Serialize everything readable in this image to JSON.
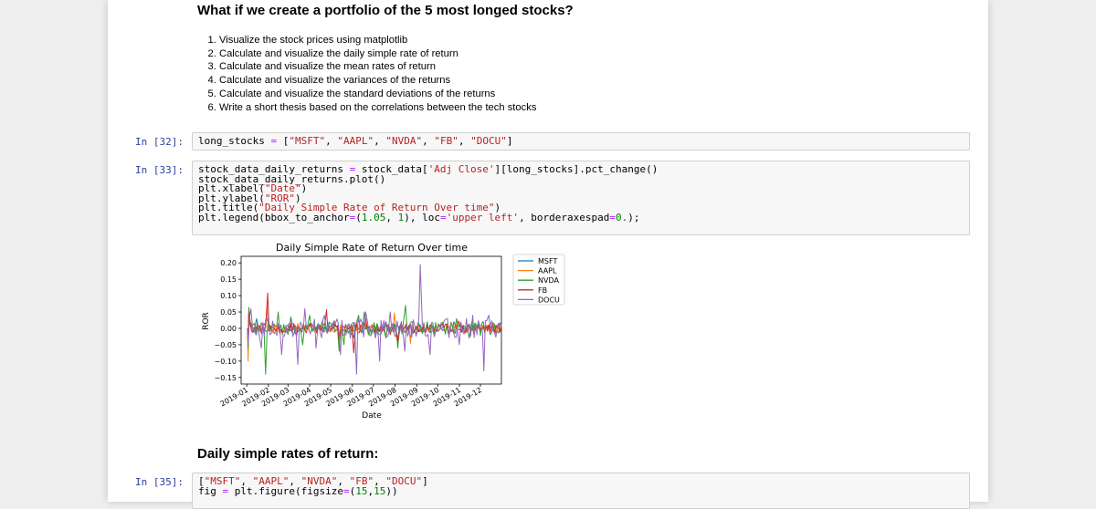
{
  "notebook": {
    "heading_1": "What if we create a portfolio of the 5 most longed stocks?",
    "steps": [
      "Visualize the stock prices using matplotlib",
      "Calculate and visualize the daily simple rate of return",
      "Calculate and visualize the mean rates of return",
      "Calculate and visualize the variances of the returns",
      "Calculate and visualize the standard deviations of the returns",
      "Write a short thesis based on the correlations between the tech stocks"
    ],
    "heading_2": "Daily simple rates of return:"
  },
  "cells": {
    "cell_32": {
      "prompt": "In [32]:",
      "lines": [
        [
          {
            "t": "long_stocks "
          },
          {
            "t": "=",
            "c": "op"
          },
          {
            "t": " ["
          },
          {
            "t": "\"MSFT\"",
            "c": "str"
          },
          {
            "t": ", "
          },
          {
            "t": "\"AAPL\"",
            "c": "str"
          },
          {
            "t": ", "
          },
          {
            "t": "\"NVDA\"",
            "c": "str"
          },
          {
            "t": ", "
          },
          {
            "t": "\"FB\"",
            "c": "str"
          },
          {
            "t": ", "
          },
          {
            "t": "\"DOCU\"",
            "c": "str"
          },
          {
            "t": "]"
          }
        ]
      ]
    },
    "cell_33": {
      "prompt": "In [33]:",
      "lines": [
        [
          {
            "t": "stock_data_daily_returns "
          },
          {
            "t": "=",
            "c": "op"
          },
          {
            "t": " stock_data["
          },
          {
            "t": "'Adj Close'",
            "c": "str"
          },
          {
            "t": "][long_stocks].pct_change()"
          }
        ],
        [
          {
            "t": "stock_data_daily_returns.plot()"
          }
        ],
        [
          {
            "t": "plt.xlabel("
          },
          {
            "t": "\"Date\"",
            "c": "str"
          },
          {
            "t": ")"
          }
        ],
        [
          {
            "t": "plt.ylabel("
          },
          {
            "t": "\"ROR\"",
            "c": "str"
          },
          {
            "t": ")"
          }
        ],
        [
          {
            "t": "plt.title("
          },
          {
            "t": "\"Daily Simple Rate of Return Over time\"",
            "c": "str"
          },
          {
            "t": ")"
          }
        ],
        [
          {
            "t": "plt.legend(bbox_to_anchor"
          },
          {
            "t": "=",
            "c": "op"
          },
          {
            "t": "("
          },
          {
            "t": "1.05",
            "c": "num"
          },
          {
            "t": ", "
          },
          {
            "t": "1",
            "c": "num"
          },
          {
            "t": "), loc"
          },
          {
            "t": "=",
            "c": "op"
          },
          {
            "t": "'upper left'",
            "c": "str"
          },
          {
            "t": ", borderaxespad"
          },
          {
            "t": "=",
            "c": "op"
          },
          {
            "t": "0.",
            "c": "num"
          },
          {
            "t": ");"
          }
        ]
      ]
    },
    "cell_35": {
      "prompt": "In [35]:",
      "lines": [
        [
          {
            "t": "["
          },
          {
            "t": "\"MSFT\"",
            "c": "str"
          },
          {
            "t": ", "
          },
          {
            "t": "\"AAPL\"",
            "c": "str"
          },
          {
            "t": ", "
          },
          {
            "t": "\"NVDA\"",
            "c": "str"
          },
          {
            "t": ", "
          },
          {
            "t": "\"FB\"",
            "c": "str"
          },
          {
            "t": ", "
          },
          {
            "t": "\"DOCU\"",
            "c": "str"
          },
          {
            "t": "]"
          }
        ],
        [
          {
            "t": "fig "
          },
          {
            "t": "=",
            "c": "op"
          },
          {
            "t": " plt.figure(figsize"
          },
          {
            "t": "=",
            "c": "op"
          },
          {
            "t": "("
          },
          {
            "t": "15",
            "c": "num"
          },
          {
            "t": ","
          },
          {
            "t": "15",
            "c": "num"
          },
          {
            "t": "))"
          }
        ]
      ]
    }
  },
  "colors": {
    "prompt": "#303f9f",
    "string": "#ba2121",
    "number": "#008000",
    "operator": "#aa22ff"
  },
  "chart_data": {
    "type": "line",
    "title": "Daily Simple Rate of Return Over time",
    "xlabel": "Date",
    "ylabel": "ROR",
    "ylim": [
      -0.17,
      0.22
    ],
    "xlim": [
      "2018-12-24",
      "2019-12-31"
    ],
    "yticks": [
      "0.20",
      "0.15",
      "0.10",
      "0.05",
      "0.00",
      "−0.05",
      "−0.10",
      "−0.15"
    ],
    "ytick_values": [
      0.2,
      0.15,
      0.1,
      0.05,
      0.0,
      -0.05,
      -0.1,
      -0.15
    ],
    "xticks": [
      "2019-01",
      "2019-02",
      "2019-03",
      "2019-04",
      "2019-05",
      "2019-06",
      "2019-07",
      "2019-08",
      "2019-09",
      "2019-10",
      "2019-11",
      "2019-12"
    ],
    "xtick_dates": [
      "2019-01-01",
      "2019-02-01",
      "2019-03-01",
      "2019-04-01",
      "2019-05-01",
      "2019-06-01",
      "2019-07-01",
      "2019-08-01",
      "2019-09-01",
      "2019-10-01",
      "2019-11-01",
      "2019-12-01"
    ],
    "legend_position": "outside upper right",
    "grid": false,
    "series": [
      {
        "name": "MSFT",
        "color": "#1f77b4",
        "points": [
          [
            "2019-01-02",
            0.0
          ],
          [
            "2019-01-03",
            -0.037
          ],
          [
            "2019-01-04",
            0.046
          ],
          [
            "2019-01-15",
            0.03
          ],
          [
            "2019-02-01",
            -0.005
          ],
          [
            "2019-03-01",
            0.01
          ],
          [
            "2019-04-01",
            0.015
          ],
          [
            "2019-05-13",
            -0.04
          ],
          [
            "2019-06-03",
            -0.03
          ],
          [
            "2019-06-19",
            0.02
          ],
          [
            "2019-07-19",
            0.02
          ],
          [
            "2019-08-05",
            -0.035
          ],
          [
            "2019-08-23",
            -0.03
          ],
          [
            "2019-09-16",
            0.005
          ],
          [
            "2019-10-24",
            0.02
          ],
          [
            "2019-11-15",
            0.01
          ],
          [
            "2019-12-31",
            0.005
          ]
        ]
      },
      {
        "name": "AAPL",
        "color": "#ff7f0e",
        "points": [
          [
            "2019-01-02",
            0.0
          ],
          [
            "2019-01-03",
            -0.1
          ],
          [
            "2019-01-04",
            0.043
          ],
          [
            "2019-01-30",
            0.068
          ],
          [
            "2019-02-15",
            0.005
          ],
          [
            "2019-03-15",
            0.015
          ],
          [
            "2019-04-15",
            0.01
          ],
          [
            "2019-05-13",
            -0.058
          ],
          [
            "2019-06-03",
            -0.01
          ],
          [
            "2019-07-31",
            0.047
          ],
          [
            "2019-08-05",
            -0.052
          ],
          [
            "2019-08-23",
            -0.046
          ],
          [
            "2019-09-16",
            0.01
          ],
          [
            "2019-10-31",
            0.023
          ],
          [
            "2019-11-15",
            0.01
          ],
          [
            "2019-12-31",
            0.007
          ]
        ]
      },
      {
        "name": "NVDA",
        "color": "#2ca02c",
        "points": [
          [
            "2019-01-02",
            0.0
          ],
          [
            "2019-01-03",
            -0.06
          ],
          [
            "2019-01-04",
            0.064
          ],
          [
            "2019-01-28",
            -0.14
          ],
          [
            "2019-02-01",
            0.03
          ],
          [
            "2019-02-15",
            0.05
          ],
          [
            "2019-03-05",
            0.035
          ],
          [
            "2019-03-22",
            -0.05
          ],
          [
            "2019-04-01",
            0.04
          ],
          [
            "2019-05-13",
            -0.07
          ],
          [
            "2019-05-20",
            -0.05
          ],
          [
            "2019-06-10",
            0.04
          ],
          [
            "2019-06-18",
            0.05
          ],
          [
            "2019-07-19",
            -0.03
          ],
          [
            "2019-08-05",
            -0.06
          ],
          [
            "2019-08-16",
            0.07
          ],
          [
            "2019-09-16",
            0.02
          ],
          [
            "2019-10-28",
            0.03
          ],
          [
            "2019-11-15",
            -0.03
          ],
          [
            "2019-12-31",
            0.01
          ]
        ]
      },
      {
        "name": "FB",
        "color": "#d62728",
        "points": [
          [
            "2019-01-02",
            0.0
          ],
          [
            "2019-01-03",
            -0.03
          ],
          [
            "2019-01-04",
            0.047
          ],
          [
            "2019-01-31",
            0.108
          ],
          [
            "2019-02-15",
            0.01
          ],
          [
            "2019-03-13",
            -0.025
          ],
          [
            "2019-04-01",
            0.01
          ],
          [
            "2019-04-25",
            0.057
          ],
          [
            "2019-05-13",
            -0.037
          ],
          [
            "2019-06-03",
            -0.075
          ],
          [
            "2019-06-20",
            0.03
          ],
          [
            "2019-07-25",
            -0.019
          ],
          [
            "2019-08-05",
            -0.04
          ],
          [
            "2019-09-16",
            0.01
          ],
          [
            "2019-10-31",
            0.02
          ],
          [
            "2019-11-15",
            0.01
          ],
          [
            "2019-12-31",
            0.01
          ]
        ]
      },
      {
        "name": "DOCU",
        "color": "#9467bd",
        "points": [
          [
            "2019-01-02",
            0.0
          ],
          [
            "2019-01-03",
            -0.05
          ],
          [
            "2019-01-07",
            0.06
          ],
          [
            "2019-01-22",
            -0.06
          ],
          [
            "2019-02-01",
            0.04
          ],
          [
            "2019-02-20",
            -0.08
          ],
          [
            "2019-03-15",
            -0.11
          ],
          [
            "2019-03-25",
            0.06
          ],
          [
            "2019-04-10",
            -0.06
          ],
          [
            "2019-04-22",
            0.04
          ],
          [
            "2019-05-15",
            -0.08
          ],
          [
            "2019-06-07",
            -0.14
          ],
          [
            "2019-06-20",
            0.05
          ],
          [
            "2019-07-10",
            -0.1
          ],
          [
            "2019-07-25",
            0.05
          ],
          [
            "2019-08-15",
            -0.07
          ],
          [
            "2019-09-06",
            0.195
          ],
          [
            "2019-09-09",
            0.01
          ],
          [
            "2019-09-20",
            -0.08
          ],
          [
            "2019-10-15",
            0.03
          ],
          [
            "2019-11-01",
            -0.05
          ],
          [
            "2019-11-20",
            0.04
          ],
          [
            "2019-12-06",
            -0.13
          ],
          [
            "2019-12-13",
            0.04
          ],
          [
            "2019-12-31",
            0.01
          ]
        ]
      }
    ]
  }
}
